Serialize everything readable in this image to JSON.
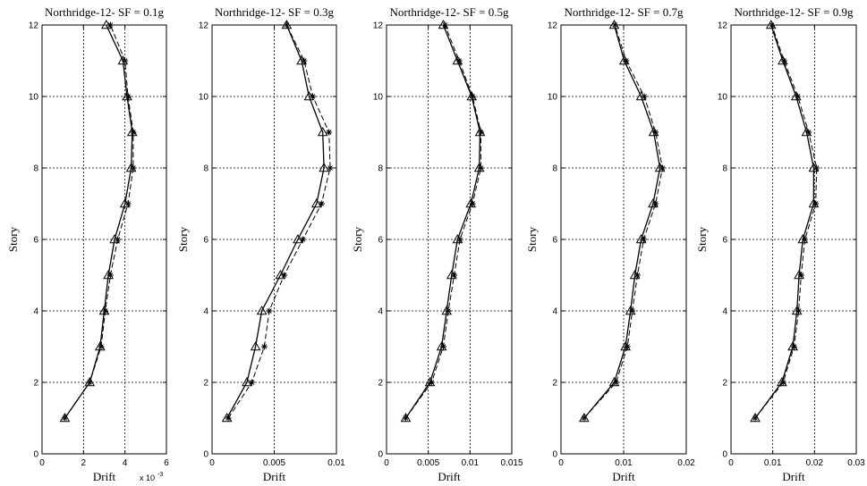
{
  "chart_data": [
    {
      "type": "line",
      "title": "Northridge-12- SF = 0.1g",
      "xlabel": "Drift",
      "ylabel": "Story",
      "x_exponent_label": "x 10",
      "x_exponent_power": "-3",
      "xlim": [
        0,
        6
      ],
      "ylim": [
        0,
        12
      ],
      "xticks": [
        0,
        2,
        4,
        6
      ],
      "xtick_labels": [
        "0",
        "2",
        "4",
        "6"
      ],
      "yticks": [
        0,
        2,
        4,
        6,
        8,
        10,
        12
      ],
      "ytick_labels": [
        "0",
        "2",
        "4",
        "6",
        "8",
        "10",
        "12"
      ],
      "grid": true,
      "series": [
        {
          "style": "solid-triangle",
          "points": [
            [
              1.1,
              1
            ],
            [
              2.3,
              2
            ],
            [
              2.8,
              3
            ],
            [
              3.0,
              4
            ],
            [
              3.2,
              5
            ],
            [
              3.5,
              6
            ],
            [
              4.0,
              7
            ],
            [
              4.3,
              8
            ],
            [
              4.35,
              9
            ],
            [
              4.1,
              10
            ],
            [
              3.9,
              11
            ],
            [
              3.1,
              12
            ]
          ]
        },
        {
          "style": "dashed-star",
          "points": [
            [
              1.1,
              1
            ],
            [
              2.3,
              2
            ],
            [
              2.85,
              3
            ],
            [
              3.05,
              4
            ],
            [
              3.3,
              5
            ],
            [
              3.65,
              6
            ],
            [
              4.15,
              7
            ],
            [
              4.4,
              8
            ],
            [
              4.4,
              9
            ],
            [
              4.15,
              10
            ],
            [
              4.0,
              11
            ],
            [
              3.3,
              12
            ]
          ]
        }
      ]
    },
    {
      "type": "line",
      "title": "Northridge-12- SF = 0.3g",
      "xlabel": "Drift",
      "ylabel": "Story",
      "xlim": [
        0,
        0.01
      ],
      "ylim": [
        0,
        12
      ],
      "xticks": [
        0,
        0.005,
        0.01
      ],
      "xtick_labels": [
        "0",
        "0.005",
        "0.01"
      ],
      "yticks": [
        0,
        2,
        4,
        6,
        8,
        10,
        12
      ],
      "ytick_labels": [
        "0",
        "2",
        "4",
        "6",
        "8",
        "10",
        "12"
      ],
      "grid": true,
      "series": [
        {
          "style": "solid-triangle",
          "points": [
            [
              0.0012,
              1
            ],
            [
              0.0028,
              2
            ],
            [
              0.0035,
              3
            ],
            [
              0.004,
              4
            ],
            [
              0.0055,
              5
            ],
            [
              0.0069,
              6
            ],
            [
              0.0084,
              7
            ],
            [
              0.009,
              8
            ],
            [
              0.0089,
              9
            ],
            [
              0.0078,
              10
            ],
            [
              0.0072,
              11
            ],
            [
              0.006,
              12
            ]
          ]
        },
        {
          "style": "dashed-star",
          "points": [
            [
              0.0013,
              1
            ],
            [
              0.0032,
              2
            ],
            [
              0.0042,
              3
            ],
            [
              0.0046,
              4
            ],
            [
              0.0058,
              5
            ],
            [
              0.0073,
              6
            ],
            [
              0.0088,
              7
            ],
            [
              0.0095,
              8
            ],
            [
              0.0094,
              9
            ],
            [
              0.0081,
              10
            ],
            [
              0.0074,
              11
            ],
            [
              0.006,
              12
            ]
          ]
        }
      ]
    },
    {
      "type": "line",
      "title": "Northridge-12- SF = 0.5g",
      "xlabel": "Drift",
      "ylabel": "Story",
      "xlim": [
        0,
        0.015
      ],
      "ylim": [
        0,
        12
      ],
      "xticks": [
        0,
        0.005,
        0.01,
        0.015
      ],
      "xtick_labels": [
        "0",
        "0.005",
        "0.01",
        "0.015"
      ],
      "yticks": [
        0,
        2,
        4,
        6,
        8,
        10,
        12
      ],
      "ytick_labels": [
        "0",
        "2",
        "4",
        "6",
        "8",
        "10",
        "12"
      ],
      "grid": true,
      "series": [
        {
          "style": "solid-triangle",
          "points": [
            [
              0.0023,
              1
            ],
            [
              0.0052,
              2
            ],
            [
              0.0066,
              3
            ],
            [
              0.0072,
              4
            ],
            [
              0.0078,
              5
            ],
            [
              0.0085,
              6
            ],
            [
              0.0101,
              7
            ],
            [
              0.0111,
              8
            ],
            [
              0.0112,
              9
            ],
            [
              0.0102,
              10
            ],
            [
              0.0085,
              11
            ],
            [
              0.0068,
              12
            ]
          ]
        },
        {
          "style": "dashed-star",
          "points": [
            [
              0.0023,
              1
            ],
            [
              0.0054,
              2
            ],
            [
              0.0068,
              3
            ],
            [
              0.0074,
              4
            ],
            [
              0.0081,
              5
            ],
            [
              0.0088,
              6
            ],
            [
              0.0103,
              7
            ],
            [
              0.0113,
              8
            ],
            [
              0.0113,
              9
            ],
            [
              0.0103,
              10
            ],
            [
              0.0087,
              11
            ],
            [
              0.007,
              12
            ]
          ]
        }
      ]
    },
    {
      "type": "line",
      "title": "Northridge-12- SF = 0.7g",
      "xlabel": "Drift",
      "ylabel": "Story",
      "xlim": [
        0,
        0.02
      ],
      "ylim": [
        0,
        12
      ],
      "xticks": [
        0,
        0.01,
        0.02
      ],
      "xtick_labels": [
        "0",
        "0.01",
        "0.02"
      ],
      "yticks": [
        0,
        2,
        4,
        6,
        8,
        10,
        12
      ],
      "ytick_labels": [
        "0",
        "2",
        "4",
        "6",
        "8",
        "10",
        "12"
      ],
      "grid": true,
      "series": [
        {
          "style": "solid-triangle",
          "points": [
            [
              0.0037,
              1
            ],
            [
              0.0085,
              2
            ],
            [
              0.0103,
              3
            ],
            [
              0.0111,
              4
            ],
            [
              0.0118,
              5
            ],
            [
              0.0128,
              6
            ],
            [
              0.0147,
              7
            ],
            [
              0.0158,
              8
            ],
            [
              0.0148,
              9
            ],
            [
              0.0128,
              10
            ],
            [
              0.0101,
              11
            ],
            [
              0.0085,
              12
            ]
          ]
        },
        {
          "style": "dashed-star",
          "points": [
            [
              0.0037,
              1
            ],
            [
              0.0088,
              2
            ],
            [
              0.0106,
              3
            ],
            [
              0.0114,
              4
            ],
            [
              0.0122,
              5
            ],
            [
              0.0132,
              6
            ],
            [
              0.0151,
              7
            ],
            [
              0.0162,
              8
            ],
            [
              0.0151,
              9
            ],
            [
              0.0133,
              10
            ],
            [
              0.0104,
              11
            ],
            [
              0.0086,
              12
            ]
          ]
        }
      ]
    },
    {
      "type": "line",
      "title": "Northridge-12- SF = 0.9g",
      "xlabel": "Drift",
      "ylabel": "Story",
      "xlim": [
        0,
        0.03
      ],
      "ylim": [
        0,
        12
      ],
      "xticks": [
        0,
        0.01,
        0.02,
        0.03
      ],
      "xtick_labels": [
        "0",
        "0.01",
        "0.02",
        "0.03"
      ],
      "yticks": [
        0,
        2,
        4,
        6,
        8,
        10,
        12
      ],
      "ytick_labels": [
        "0",
        "2",
        "4",
        "6",
        "8",
        "10",
        "12"
      ],
      "grid": true,
      "series": [
        {
          "style": "solid-triangle",
          "points": [
            [
              0.0058,
              1
            ],
            [
              0.0122,
              2
            ],
            [
              0.0148,
              3
            ],
            [
              0.0158,
              4
            ],
            [
              0.0163,
              5
            ],
            [
              0.0172,
              6
            ],
            [
              0.0198,
              7
            ],
            [
              0.0198,
              8
            ],
            [
              0.0181,
              9
            ],
            [
              0.0156,
              10
            ],
            [
              0.0124,
              11
            ],
            [
              0.0096,
              12
            ]
          ]
        },
        {
          "style": "dashed-star",
          "points": [
            [
              0.0058,
              1
            ],
            [
              0.0125,
              2
            ],
            [
              0.0151,
              3
            ],
            [
              0.0162,
              4
            ],
            [
              0.0168,
              5
            ],
            [
              0.0177,
              6
            ],
            [
              0.0203,
              7
            ],
            [
              0.0205,
              8
            ],
            [
              0.0186,
              9
            ],
            [
              0.016,
              10
            ],
            [
              0.0127,
              11
            ],
            [
              0.0098,
              12
            ]
          ]
        }
      ]
    }
  ]
}
